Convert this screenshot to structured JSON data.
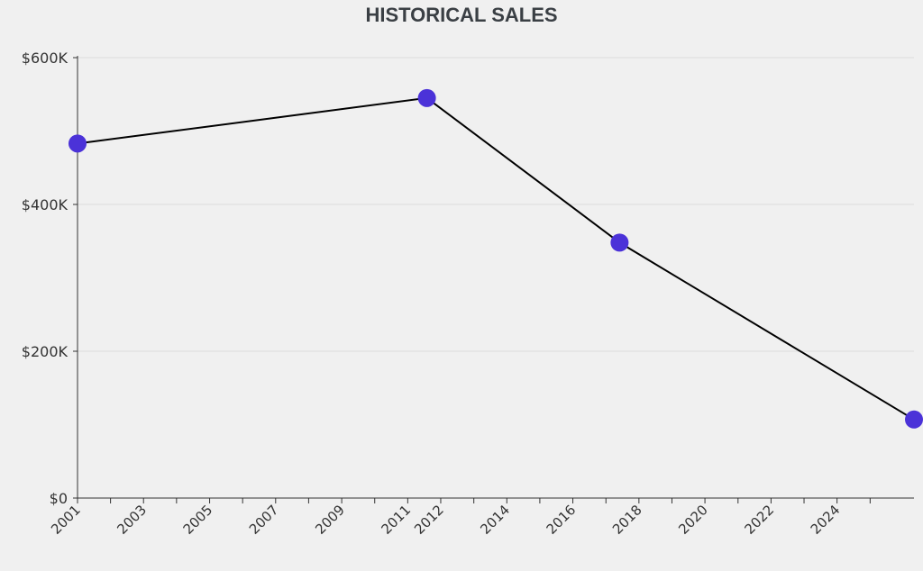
{
  "chart_data": {
    "type": "line",
    "title": "HISTORICAL SALES",
    "xlabel": "",
    "ylabel": "",
    "xlim": [
      "2001-01-01",
      "2026-05-01"
    ],
    "ylim": [
      0,
      600000
    ],
    "yticks": [
      {
        "value": 0,
        "label": "$0"
      },
      {
        "value": 200000,
        "label": "$200K"
      },
      {
        "value": 400000,
        "label": "$400K"
      },
      {
        "value": 600000,
        "label": "$600K"
      }
    ],
    "xticks": [
      {
        "date": "2001-01-01",
        "label": "2001"
      },
      {
        "date": "2002-01-01",
        "label": ""
      },
      {
        "date": "2003-01-01",
        "label": "2003"
      },
      {
        "date": "2004-01-01",
        "label": ""
      },
      {
        "date": "2005-01-01",
        "label": "2005"
      },
      {
        "date": "2006-01-01",
        "label": ""
      },
      {
        "date": "2007-01-01",
        "label": "2007"
      },
      {
        "date": "2008-01-01",
        "label": ""
      },
      {
        "date": "2009-01-01",
        "label": "2009"
      },
      {
        "date": "2010-01-01",
        "label": ""
      },
      {
        "date": "2011-01-01",
        "label": "2011"
      },
      {
        "date": "2012-01-01",
        "label": "2012"
      },
      {
        "date": "2013-01-01",
        "label": ""
      },
      {
        "date": "2014-01-01",
        "label": "2014"
      },
      {
        "date": "2015-01-01",
        "label": ""
      },
      {
        "date": "2016-01-01",
        "label": "2016"
      },
      {
        "date": "2017-01-01",
        "label": ""
      },
      {
        "date": "2018-01-01",
        "label": "2018"
      },
      {
        "date": "2019-01-01",
        "label": ""
      },
      {
        "date": "2020-01-01",
        "label": "2020"
      },
      {
        "date": "2021-01-01",
        "label": ""
      },
      {
        "date": "2022-01-01",
        "label": "2022"
      },
      {
        "date": "2023-01-01",
        "label": ""
      },
      {
        "date": "2024-01-01",
        "label": "2024"
      },
      {
        "date": "2025-01-01",
        "label": ""
      }
    ],
    "series": [
      {
        "points": [
          {
            "x": "2001-01-01",
            "y": 483000
          },
          {
            "x": "2011-08-01",
            "y": 545000
          },
          {
            "x": "2017-06-01",
            "y": 348000
          },
          {
            "x": "2026-05-01",
            "y": 107000
          }
        ]
      }
    ],
    "grid": true,
    "colors": {
      "line": "#000000",
      "marker": "#4b32d8",
      "grid": "#dcdcdc",
      "axis": "#333333",
      "title": "#3a3f44",
      "background": "#f0f0f0"
    }
  }
}
